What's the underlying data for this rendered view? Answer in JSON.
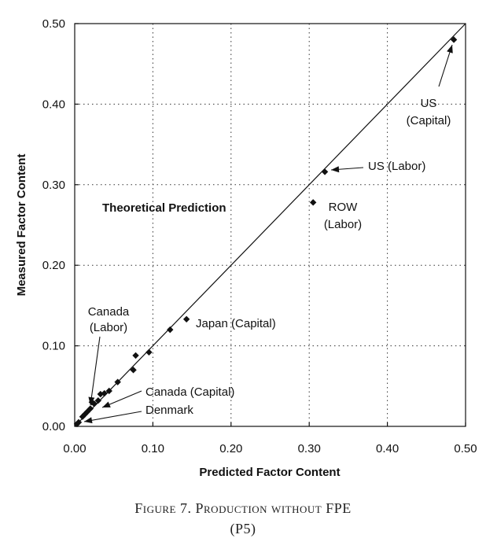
{
  "chart_data": {
    "type": "scatter",
    "xlabel": "Predicted Factor Content",
    "ylabel": "Measured Factor Content",
    "xlim": [
      0.0,
      0.5
    ],
    "ylim": [
      0.0,
      0.5
    ],
    "x_ticks": [
      "0.00",
      "0.10",
      "0.20",
      "0.30",
      "0.40",
      "0.50"
    ],
    "y_ticks": [
      "0.00",
      "0.10",
      "0.20",
      "0.30",
      "0.40",
      "0.50"
    ],
    "x_tick_values": [
      0.0,
      0.1,
      0.2,
      0.3,
      0.4,
      0.5
    ],
    "y_tick_values": [
      0.0,
      0.1,
      0.2,
      0.3,
      0.4,
      0.5
    ],
    "grid": "dotted",
    "reference_line": {
      "label": "Theoretical Prediction",
      "from": [
        0.0,
        0.0
      ],
      "to": [
        0.5,
        0.5
      ]
    },
    "points": [
      {
        "x": 0.003,
        "y": 0.003
      },
      {
        "x": 0.005,
        "y": 0.005
      },
      {
        "x": 0.01,
        "y": 0.012
      },
      {
        "x": 0.013,
        "y": 0.015
      },
      {
        "x": 0.016,
        "y": 0.018
      },
      {
        "x": 0.02,
        "y": 0.022
      },
      {
        "x": 0.022,
        "y": 0.03
      },
      {
        "x": 0.025,
        "y": 0.028
      },
      {
        "x": 0.03,
        "y": 0.032
      },
      {
        "x": 0.033,
        "y": 0.04
      },
      {
        "x": 0.038,
        "y": 0.041
      },
      {
        "x": 0.044,
        "y": 0.044
      },
      {
        "x": 0.055,
        "y": 0.055
      },
      {
        "x": 0.075,
        "y": 0.07
      },
      {
        "x": 0.078,
        "y": 0.088
      },
      {
        "x": 0.095,
        "y": 0.092
      },
      {
        "x": 0.122,
        "y": 0.12
      },
      {
        "x": 0.143,
        "y": 0.133
      },
      {
        "x": 0.305,
        "y": 0.278
      },
      {
        "x": 0.32,
        "y": 0.316
      },
      {
        "x": 0.485,
        "y": 0.48
      }
    ],
    "annotations": [
      {
        "text": "US",
        "text2": "(Capital)"
      },
      {
        "text": "US (Labor)"
      },
      {
        "text": "ROW",
        "text2": "(Labor)"
      },
      {
        "text": "Japan (Capital)"
      },
      {
        "text": "Canada",
        "text2": "(Labor)"
      },
      {
        "text": "Canada (Capital)"
      },
      {
        "text": "Denmark"
      }
    ]
  },
  "caption": {
    "line1": "Figure 7. Production without FPE",
    "line2": "(P5)"
  }
}
